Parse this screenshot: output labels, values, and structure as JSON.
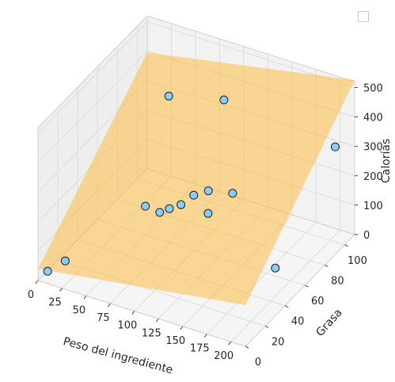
{
  "chart_data": {
    "type": "scatter",
    "projection": "3d",
    "title": "",
    "xlabel": "Peso del ingrediente",
    "ylabel": "Grasa",
    "zlabel": "Calorías",
    "xlim": [
      0,
      215
    ],
    "ylim": [
      0,
      110
    ],
    "zlim": [
      0,
      520
    ],
    "x_ticks": [
      0,
      25,
      50,
      75,
      100,
      125,
      150,
      175,
      200
    ],
    "y_ticks": [
      0,
      20,
      40,
      60,
      80,
      100
    ],
    "z_ticks": [
      0,
      100,
      200,
      300,
      400,
      500
    ],
    "grid": true,
    "legend": {
      "placement": "top-right",
      "entries": []
    },
    "colors": {
      "points": "#87cefa",
      "point_edge": "#222222",
      "plane": "#ffb733",
      "pane": "#f2f2f2",
      "grid": "#dddddd"
    },
    "points": [
      {
        "x": 10,
        "y": 0,
        "z": 42
      },
      {
        "x": 20,
        "y": 8,
        "z": 60
      },
      {
        "x": 210,
        "y": 35,
        "z": 140
      },
      {
        "x": 65,
        "y": 45,
        "z": 165
      },
      {
        "x": 85,
        "y": 40,
        "z": 182
      },
      {
        "x": 95,
        "y": 40,
        "z": 205
      },
      {
        "x": 105,
        "y": 42,
        "z": 222
      },
      {
        "x": 110,
        "y": 50,
        "z": 232
      },
      {
        "x": 120,
        "y": 55,
        "z": 240
      },
      {
        "x": 130,
        "y": 45,
        "z": 208
      },
      {
        "x": 140,
        "y": 60,
        "z": 235
      },
      {
        "x": 95,
        "y": 95,
        "z": 385
      },
      {
        "x": 45,
        "y": 88,
        "z": 370
      },
      {
        "x": 200,
        "y": 105,
        "z": 300
      }
    ],
    "regression_plane": {
      "corners": [
        {
          "x": 0,
          "y": 0,
          "z": 40
        },
        {
          "x": 215,
          "y": 0,
          "z": 140
        },
        {
          "x": 215,
          "y": 110,
          "z": 525
        },
        {
          "x": 0,
          "y": 110,
          "z": 395
        }
      ],
      "alpha": 0.5
    }
  }
}
